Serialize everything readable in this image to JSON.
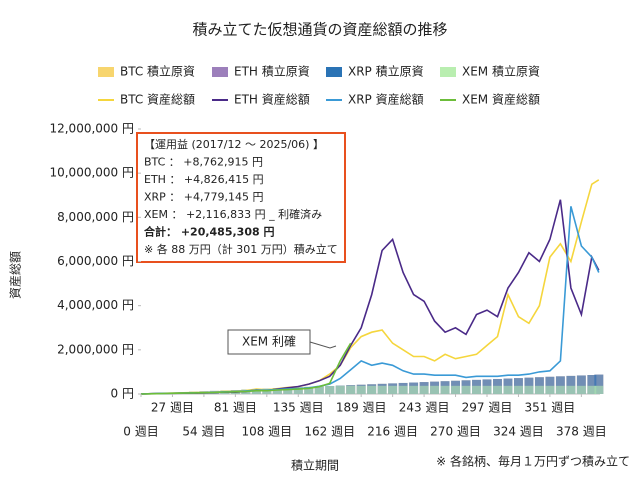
{
  "chart_data": {
    "type": "combo",
    "title": "積み立てた仮想通貨の資産総額の推移",
    "xlabel": "積立期間",
    "ylabel": "資産総額",
    "footnote": "※ 各銘柄、毎月１万円ずつ積み立て",
    "annotations": {
      "box": [
        "【運用益 (2017/12 ～ 2025/06) 】",
        "BTC ： +8,762,915 円",
        "ETH ： +4,826,415 円",
        "XRP ： +4,779,145 円",
        "XEM ： +2,116,833 円 _ 利確済み",
        "合計： +20,485,308 円",
        "※ 各 88 万円（計 301 万円）積み立て"
      ],
      "callout": "XEM 利確"
    },
    "x": [
      0,
      9,
      18,
      27,
      36,
      45,
      54,
      63,
      72,
      81,
      90,
      99,
      108,
      117,
      126,
      135,
      144,
      153,
      162,
      171,
      180,
      189,
      198,
      207,
      216,
      225,
      234,
      243,
      252,
      261,
      270,
      279,
      288,
      297,
      306,
      315,
      324,
      333,
      342,
      351,
      360,
      369,
      378,
      387,
      393
    ],
    "xlim": [
      0,
      394
    ],
    "xticks": [
      {
        "value": 0,
        "label": "0 週目"
      },
      {
        "value": 27,
        "label": "27 週目"
      },
      {
        "value": 54,
        "label": "54 週目"
      },
      {
        "value": 81,
        "label": "81 週目"
      },
      {
        "value": 108,
        "label": "108 週目"
      },
      {
        "value": 135,
        "label": "135 週目"
      },
      {
        "value": 162,
        "label": "162 週目"
      },
      {
        "value": 189,
        "label": "189 週目"
      },
      {
        "value": 216,
        "label": "216 週目"
      },
      {
        "value": 243,
        "label": "243 週目"
      },
      {
        "value": 270,
        "label": "270 週目"
      },
      {
        "value": 297,
        "label": "297 週目"
      },
      {
        "value": 324,
        "label": "324 週目"
      },
      {
        "value": 351,
        "label": "351 週目"
      },
      {
        "value": 378,
        "label": "378 週目"
      }
    ],
    "ylim": [
      0,
      12000000
    ],
    "yticks": [
      {
        "value": 0,
        "label": "0 円"
      },
      {
        "value": 2000000,
        "label": "2,000,000 円"
      },
      {
        "value": 4000000,
        "label": "4,000,000 円"
      },
      {
        "value": 6000000,
        "label": "6,000,000 円"
      },
      {
        "value": 8000000,
        "label": "8,000,000 円"
      },
      {
        "value": 10000000,
        "label": "10,000,000 円"
      },
      {
        "value": 12000000,
        "label": "12,000,000 円"
      }
    ],
    "grid": false,
    "series": [
      {
        "name": "BTC 積立原資",
        "type": "bar",
        "color": "#f7d56e",
        "values": [
          0,
          20000,
          40000,
          60000,
          80000,
          100000,
          120000,
          140000,
          160000,
          180000,
          200000,
          220000,
          240000,
          260000,
          280000,
          300000,
          320000,
          340000,
          360000,
          380000,
          400000,
          420000,
          440000,
          460000,
          480000,
          500000,
          520000,
          540000,
          560000,
          580000,
          600000,
          620000,
          640000,
          660000,
          680000,
          700000,
          720000,
          740000,
          760000,
          780000,
          800000,
          820000,
          840000,
          860000,
          880000
        ]
      },
      {
        "name": "ETH 積立原資",
        "type": "bar",
        "color": "#9c7fbb",
        "values": [
          0,
          20000,
          40000,
          60000,
          80000,
          100000,
          120000,
          140000,
          160000,
          180000,
          200000,
          220000,
          240000,
          260000,
          280000,
          300000,
          320000,
          340000,
          360000,
          380000,
          400000,
          420000,
          440000,
          460000,
          480000,
          500000,
          520000,
          540000,
          560000,
          580000,
          600000,
          620000,
          640000,
          660000,
          680000,
          700000,
          720000,
          740000,
          760000,
          780000,
          800000,
          820000,
          840000,
          860000,
          880000
        ]
      },
      {
        "name": "XRP 積立原資",
        "type": "bar",
        "color": "#2a73b5",
        "values": [
          0,
          20000,
          40000,
          60000,
          80000,
          100000,
          120000,
          140000,
          160000,
          180000,
          200000,
          220000,
          240000,
          260000,
          280000,
          300000,
          320000,
          340000,
          360000,
          380000,
          400000,
          420000,
          440000,
          460000,
          480000,
          500000,
          520000,
          540000,
          560000,
          580000,
          600000,
          620000,
          640000,
          660000,
          680000,
          700000,
          720000,
          740000,
          760000,
          780000,
          800000,
          820000,
          840000,
          860000,
          880000
        ]
      },
      {
        "name": "XEM 積立原資",
        "type": "bar",
        "color": "#b9eeb0",
        "values": [
          0,
          20000,
          40000,
          60000,
          80000,
          100000,
          120000,
          140000,
          160000,
          180000,
          200000,
          220000,
          240000,
          260000,
          280000,
          300000,
          320000,
          340000,
          360000,
          370000,
          370000,
          370000,
          370000,
          370000,
          370000,
          370000,
          370000,
          370000,
          370000,
          370000,
          370000,
          370000,
          370000,
          370000,
          370000,
          370000,
          370000,
          370000,
          370000,
          370000,
          370000,
          370000,
          370000,
          370000,
          370000
        ]
      },
      {
        "name": "BTC 資産総額",
        "type": "line",
        "color": "#f5d63d",
        "values": [
          0,
          15000,
          30000,
          45000,
          55000,
          70000,
          75000,
          95000,
          120000,
          130000,
          160000,
          220000,
          190000,
          240000,
          300000,
          330000,
          450000,
          600000,
          900000,
          1300000,
          2100000,
          2600000,
          2800000,
          2900000,
          2300000,
          2000000,
          1700000,
          1700000,
          1500000,
          1800000,
          1600000,
          1700000,
          1800000,
          2200000,
          2600000,
          4500000,
          3500000,
          3200000,
          4000000,
          6200000,
          6800000,
          6000000,
          7800000,
          9500000,
          9700000
        ]
      },
      {
        "name": "ETH 資産総額",
        "type": "line",
        "color": "#4a2a88",
        "values": [
          0,
          15000,
          25000,
          30000,
          35000,
          40000,
          50000,
          60000,
          90000,
          80000,
          120000,
          180000,
          160000,
          220000,
          280000,
          340000,
          450000,
          600000,
          800000,
          1300000,
          2200000,
          3000000,
          4500000,
          6500000,
          7000000,
          5500000,
          4500000,
          4200000,
          3300000,
          2800000,
          3000000,
          2700000,
          3600000,
          3800000,
          3500000,
          4800000,
          5500000,
          6400000,
          6000000,
          7000000,
          8800000,
          4800000,
          3600000,
          6200000,
          5600000
        ]
      },
      {
        "name": "XRP 資産総額",
        "type": "line",
        "color": "#3a9ad6",
        "values": [
          0,
          12000,
          25000,
          35000,
          45000,
          55000,
          70000,
          80000,
          100000,
          120000,
          140000,
          170000,
          180000,
          200000,
          230000,
          250000,
          280000,
          350000,
          450000,
          700000,
          1100000,
          1500000,
          1300000,
          1400000,
          1300000,
          1050000,
          900000,
          900000,
          850000,
          850000,
          850000,
          750000,
          800000,
          800000,
          800000,
          850000,
          850000,
          900000,
          1000000,
          1050000,
          1500000,
          8500000,
          6700000,
          6200000,
          5500000
        ]
      },
      {
        "name": "XEM 資産総額",
        "type": "line",
        "color": "#6cbd3a",
        "values": [
          0,
          10000,
          20000,
          30000,
          40000,
          50000,
          60000,
          70000,
          90000,
          100000,
          120000,
          150000,
          150000,
          180000,
          200000,
          220000,
          260000,
          330000,
          480000,
          1500000,
          2300000,
          null,
          null,
          null,
          null,
          null,
          null,
          null,
          null,
          null,
          null,
          null,
          null,
          null,
          null,
          null,
          null,
          null,
          null,
          null,
          null,
          null,
          null,
          null,
          null
        ]
      }
    ]
  }
}
